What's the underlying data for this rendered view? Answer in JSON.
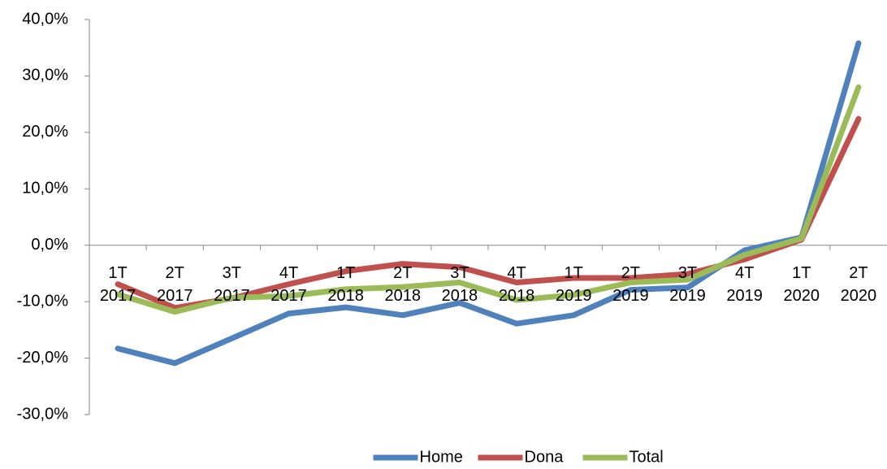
{
  "chart_data": {
    "type": "line",
    "categories": [
      "1T 2017",
      "2T 2017",
      "3T 2017",
      "4T 2017",
      "1T 2018",
      "2T 2018",
      "3T 2018",
      "4T 2018",
      "1T 2019",
      "2T 2019",
      "3T 2019",
      "4T 2019",
      "1T 2020",
      "2T 2020"
    ],
    "series": [
      {
        "name": "Home",
        "color": "#4f81bd",
        "values": [
          -18.3,
          -20.9,
          -16.5,
          -12.1,
          -11.0,
          -12.4,
          -10.2,
          -13.9,
          -12.4,
          -7.9,
          -7.5,
          -0.9,
          1.4,
          35.8
        ]
      },
      {
        "name": "Dona",
        "color": "#c0504d",
        "values": [
          -6.9,
          -11.1,
          -9.4,
          -6.9,
          -4.6,
          -3.3,
          -3.9,
          -6.6,
          -5.8,
          -5.8,
          -5.1,
          -2.5,
          1.0,
          22.4
        ]
      },
      {
        "name": "Total",
        "color": "#9bbb59",
        "values": [
          -8.7,
          -11.8,
          -9.3,
          -9.0,
          -7.8,
          -7.4,
          -6.6,
          -9.7,
          -8.8,
          -6.6,
          -6.1,
          -1.7,
          1.2,
          28.0
        ]
      }
    ],
    "ylim": [
      -30,
      40
    ],
    "yticks": [
      {
        "value": -30,
        "label": "-30,0%"
      },
      {
        "value": -20,
        "label": "-20,0%"
      },
      {
        "value": -10,
        "label": "-10,0%"
      },
      {
        "value": 0,
        "label": "0,0%"
      },
      {
        "value": 10,
        "label": "10,0%"
      },
      {
        "value": 20,
        "label": "20,0%"
      },
      {
        "value": 30,
        "label": "30,0%"
      },
      {
        "value": 40,
        "label": "40,0%"
      }
    ],
    "grid": false,
    "legend": "bottom"
  }
}
